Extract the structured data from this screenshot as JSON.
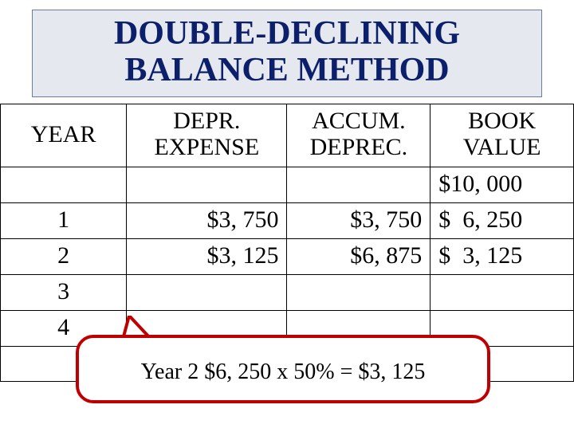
{
  "title": {
    "line1": "DOUBLE-DECLINING",
    "line2": "BALANCE METHOD",
    "background_color": "#e6e8f0",
    "border_color": "#6e7a99",
    "text_color": "#0b1f6b",
    "font_size": 42
  },
  "table": {
    "columns": [
      {
        "key": "year",
        "label": "YEAR",
        "width_pct": 22
      },
      {
        "key": "depr",
        "label": "DEPR.\nEXPENSE",
        "width_pct": 28
      },
      {
        "key": "accum",
        "label": "ACCUM.\nDEPREC.",
        "width_pct": 25
      },
      {
        "key": "book",
        "label": "BOOK\nVALUE",
        "width_pct": 25
      }
    ],
    "rows": [
      {
        "year": "",
        "depr": "",
        "accum": "",
        "book": "$10, 000"
      },
      {
        "year": "1",
        "depr": "$3, 750",
        "accum": "$3, 750",
        "book": "$  6, 250"
      },
      {
        "year": "2",
        "depr": "$3, 125",
        "accum": "$6, 875",
        "book": "$  3, 125"
      },
      {
        "year": "3",
        "depr": "",
        "accum": "",
        "book": ""
      },
      {
        "year": "4",
        "depr": "",
        "accum": "",
        "book": ""
      },
      {
        "year": "",
        "depr": "",
        "accum": "",
        "book": ""
      }
    ],
    "border_color": "#000000",
    "font_size": 30
  },
  "callout": {
    "text": "Year 2 $6, 250 x 50% = $3, 125",
    "border_color": "#c00000",
    "background_color": "#ffffff",
    "border_width": 4,
    "border_radius": 22,
    "font_size": 28,
    "tail_fill": "#ffffff"
  }
}
